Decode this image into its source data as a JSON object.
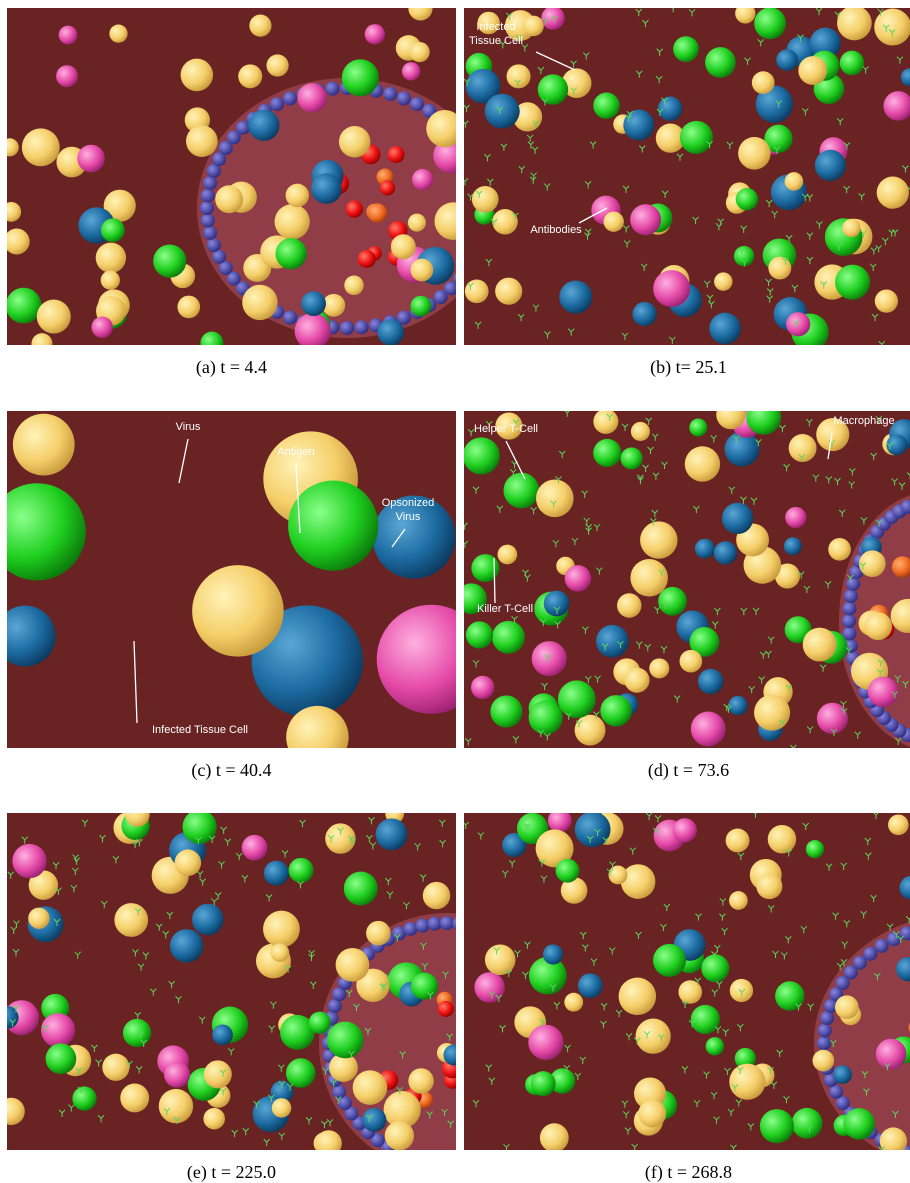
{
  "panels": [
    {
      "caption": "(a) t = 4.4",
      "labels": []
    },
    {
      "caption": "(b) t= 25.1",
      "labels": [
        {
          "lines": [
            "Infected",
            "Tissue Cell"
          ]
        },
        {
          "lines": [
            "Antibodies"
          ]
        }
      ]
    },
    {
      "caption": "(c) t = 40.4",
      "labels": [
        {
          "lines": [
            "Virus"
          ]
        },
        {
          "lines": [
            "Antigen"
          ]
        },
        {
          "lines": [
            "Opsonized",
            "Virus"
          ]
        },
        {
          "lines": [
            "Infected Tissue Cell"
          ]
        }
      ]
    },
    {
      "caption": "(d) t = 73.6",
      "labels": [
        {
          "lines": [
            "Helper T-Cell"
          ]
        },
        {
          "lines": [
            "Macrophage"
          ]
        },
        {
          "lines": [
            "Killer T-Cell"
          ]
        }
      ]
    },
    {
      "caption": "(e) t = 225.0",
      "labels": []
    },
    {
      "caption": "(f) t = 268.8",
      "labels": []
    }
  ]
}
